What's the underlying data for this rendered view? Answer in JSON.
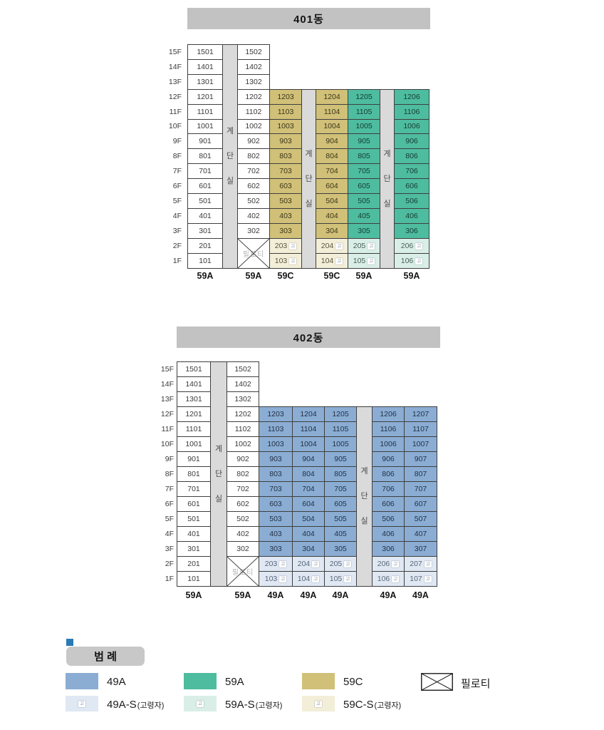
{
  "buildings": [
    {
      "title": "401동",
      "floors": [
        "15F",
        "14F",
        "13F",
        "12F",
        "11F",
        "10F",
        "9F",
        "8F",
        "7F",
        "6F",
        "5F",
        "4F",
        "3F",
        "2F",
        "1F"
      ],
      "stair_text": "계단실",
      "piloti_text": "필로티",
      "columns": [
        {
          "type_label": "59A",
          "style": "white",
          "units": [
            "1501",
            "1401",
            "1301",
            "1201",
            "1101",
            "1001",
            "901",
            "801",
            "701",
            "601",
            "501",
            "401",
            "301",
            "201",
            "101"
          ],
          "piloti": false
        },
        {
          "type_label": "59A",
          "style": "white",
          "units": [
            "1502",
            "1402",
            "1302",
            "1202",
            "1102",
            "1002",
            "902",
            "802",
            "702",
            "602",
            "502",
            "402",
            "302"
          ],
          "piloti": true
        },
        {
          "type_label": "59C",
          "style": "tan",
          "units": [
            "1203",
            "1103",
            "1003",
            "903",
            "803",
            "703",
            "603",
            "503",
            "403",
            "303"
          ],
          "elderly_style": "tan-s",
          "elderly_units": [
            "203",
            "103"
          ],
          "piloti": false
        },
        {
          "type_label": "59C",
          "style": "tan",
          "units": [
            "1204",
            "1104",
            "1004",
            "904",
            "804",
            "704",
            "604",
            "504",
            "404",
            "304"
          ],
          "elderly_style": "tan-s",
          "elderly_units": [
            "204",
            "104"
          ],
          "piloti": false
        },
        {
          "type_label": "59A",
          "style": "teal",
          "units": [
            "1205",
            "1105",
            "1005",
            "905",
            "805",
            "705",
            "605",
            "505",
            "405",
            "305"
          ],
          "elderly_style": "teal-s",
          "elderly_units": [
            "205",
            "105"
          ],
          "piloti": false
        },
        {
          "type_label": "59A",
          "style": "teal",
          "units": [
            "1206",
            "1106",
            "1006",
            "906",
            "806",
            "706",
            "606",
            "506",
            "406",
            "306"
          ],
          "elderly_style": "teal-s",
          "elderly_units": [
            "206",
            "106"
          ],
          "piloti": false
        }
      ]
    },
    {
      "title": "402동",
      "floors": [
        "15F",
        "14F",
        "13F",
        "12F",
        "11F",
        "10F",
        "9F",
        "8F",
        "7F",
        "6F",
        "5F",
        "4F",
        "3F",
        "2F",
        "1F"
      ],
      "stair_text": "계단실",
      "piloti_text": "필로티",
      "columns": [
        {
          "type_label": "59A",
          "style": "white",
          "units": [
            "1501",
            "1401",
            "1301",
            "1201",
            "1101",
            "1001",
            "901",
            "801",
            "701",
            "601",
            "501",
            "401",
            "301",
            "201",
            "101"
          ],
          "piloti": false
        },
        {
          "type_label": "59A",
          "style": "white",
          "units": [
            "1502",
            "1402",
            "1302",
            "1202",
            "1102",
            "1002",
            "902",
            "802",
            "702",
            "602",
            "502",
            "402",
            "302"
          ],
          "piloti": true
        },
        {
          "type_label": "49A",
          "style": "blue",
          "units": [
            "1203",
            "1103",
            "1003",
            "903",
            "803",
            "703",
            "603",
            "503",
            "403",
            "303"
          ],
          "elderly_style": "blue-s",
          "elderly_units": [
            "203",
            "103"
          ],
          "piloti": false
        },
        {
          "type_label": "49A",
          "style": "blue",
          "units": [
            "1204",
            "1104",
            "1004",
            "904",
            "804",
            "704",
            "604",
            "504",
            "404",
            "304"
          ],
          "elderly_style": "blue-s",
          "elderly_units": [
            "204",
            "104"
          ],
          "piloti": false
        },
        {
          "type_label": "49A",
          "style": "blue",
          "units": [
            "1205",
            "1105",
            "1005",
            "905",
            "805",
            "705",
            "605",
            "505",
            "405",
            "305"
          ],
          "elderly_style": "blue-s",
          "elderly_units": [
            "205",
            "105"
          ],
          "piloti": false
        },
        {
          "type_label": "49A",
          "style": "blue",
          "units": [
            "1206",
            "1106",
            "1006",
            "906",
            "806",
            "706",
            "606",
            "506",
            "406",
            "306"
          ],
          "elderly_style": "blue-s",
          "elderly_units": [
            "206",
            "106"
          ],
          "piloti": false
        },
        {
          "type_label": "49A",
          "style": "blue",
          "units": [
            "1207",
            "1107",
            "1007",
            "907",
            "807",
            "707",
            "607",
            "507",
            "407",
            "307"
          ],
          "elderly_style": "blue-s",
          "elderly_units": [
            "207",
            "107"
          ],
          "piloti": false
        }
      ]
    }
  ],
  "legend": {
    "title": "범 례",
    "elderly_badge": "고",
    "row1": [
      {
        "label": "49A"
      },
      {
        "label": "59A"
      },
      {
        "label": "59C"
      },
      {
        "label": "필로티"
      }
    ],
    "row2": [
      {
        "label": "49A-S",
        "suffix": "(고령자)"
      },
      {
        "label": "59A-S",
        "suffix": "(고령자)"
      },
      {
        "label": "59C-S",
        "suffix": "(고령자)"
      }
    ]
  },
  "colors": {
    "type_49A": "#8badd3",
    "type_59A": "#4ebc9f",
    "type_59C": "#d0c078",
    "type_49A_S": "#dfe8f3",
    "type_59A_S": "#d9eee6",
    "type_59C_S": "#f2eed8",
    "header_bar": "#c2c2c2",
    "stairwell": "#dadada",
    "legend_marker": "#2a7ab5"
  }
}
